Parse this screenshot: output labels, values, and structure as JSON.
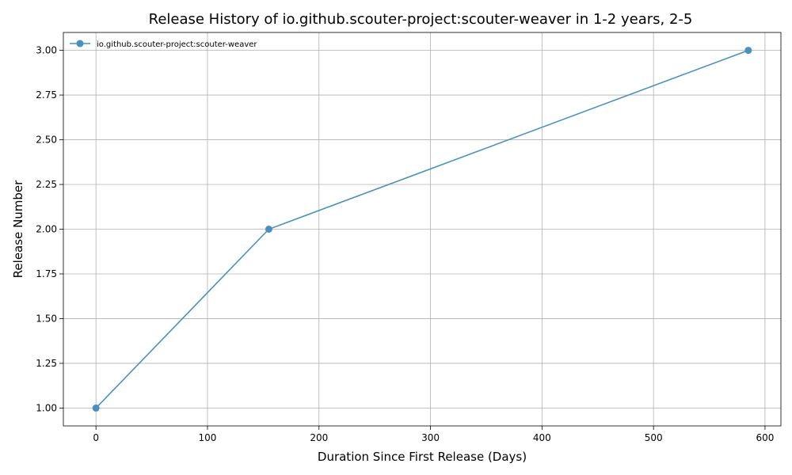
{
  "chart_data": {
    "type": "line",
    "title": "Release History of io.github.scouter-project:scouter-weaver in 1-2 years, 2-5",
    "xlabel": "Duration Since First Release (Days)",
    "ylabel": "Release Number",
    "xlim": [
      -29.25,
      614.25
    ],
    "ylim": [
      0.9,
      3.1
    ],
    "xticks": [
      0,
      100,
      200,
      300,
      400,
      500,
      600
    ],
    "yticks": [
      1.0,
      1.25,
      1.5,
      1.75,
      2.0,
      2.25,
      2.5,
      2.75,
      3.0
    ],
    "xtick_labels": [
      "0",
      "100",
      "200",
      "300",
      "400",
      "500",
      "600"
    ],
    "ytick_labels": [
      "1.00",
      "1.25",
      "1.50",
      "1.75",
      "2.00",
      "2.25",
      "2.50",
      "2.75",
      "3.00"
    ],
    "grid": true,
    "legend_position": "top-left",
    "series": [
      {
        "name": "io.github.scouter-project:scouter-weaver",
        "color": "#4a90bf",
        "marker": "circle",
        "x": [
          0,
          155,
          585
        ],
        "y": [
          1,
          2,
          3
        ]
      }
    ]
  }
}
